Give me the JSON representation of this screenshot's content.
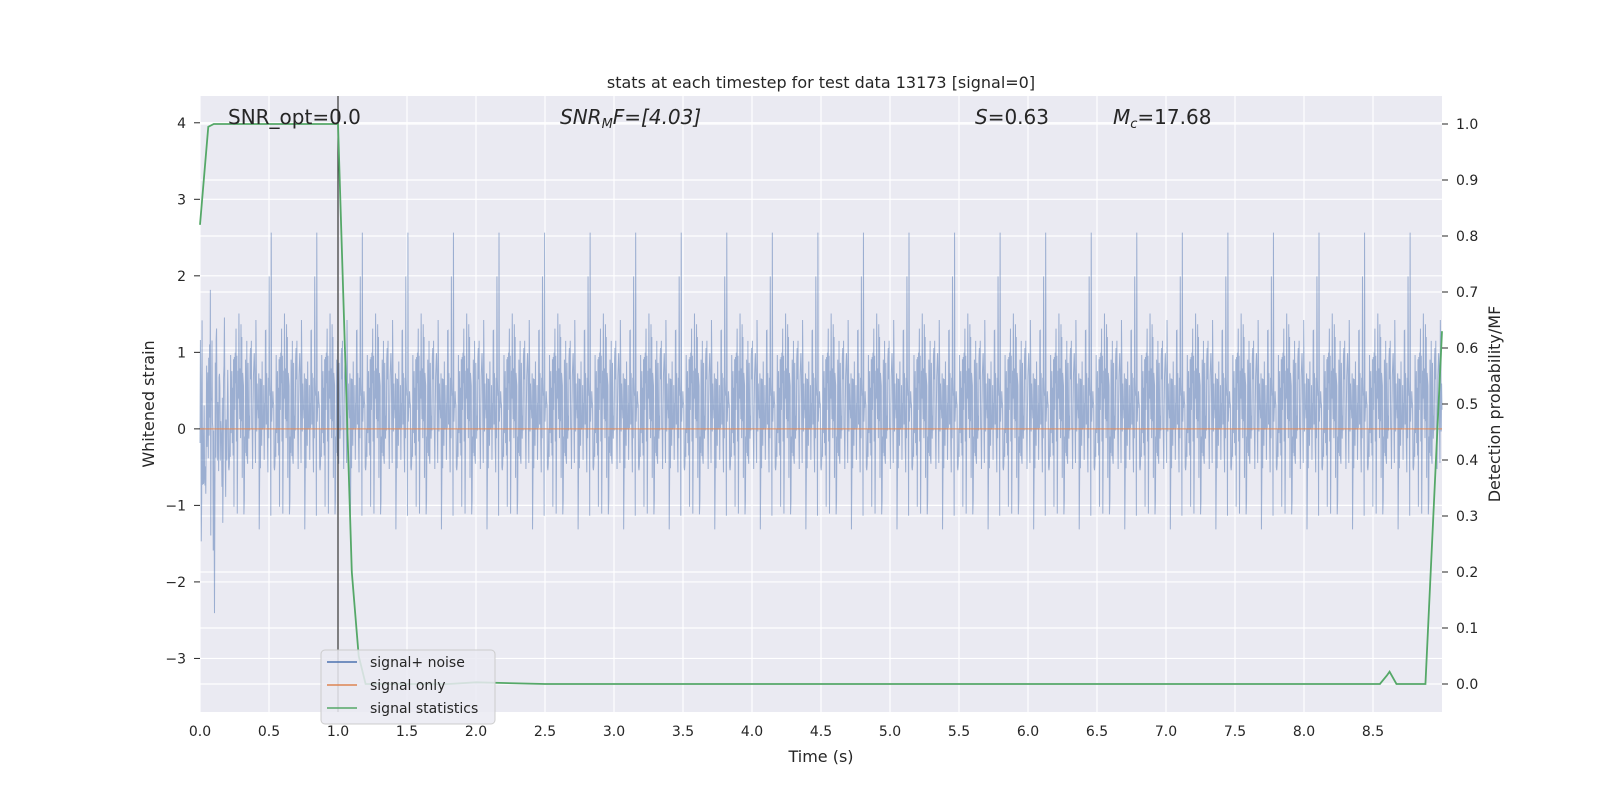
{
  "chart_data": {
    "type": "line",
    "title": "stats at each timestep for test data 13173 [signal=0]",
    "xlabel": "Time (s)",
    "ylabel_left": "Whitened strain",
    "ylabel_right": "Detection probability/MF",
    "xlim": [
      0.0,
      9.0
    ],
    "ylim_left": [
      -3.7,
      4.35
    ],
    "ylim_right": [
      -0.05,
      1.05
    ],
    "xticks": [
      "0.0",
      "0.5",
      "1.0",
      "1.5",
      "2.0",
      "2.5",
      "3.0",
      "3.5",
      "4.0",
      "4.5",
      "5.0",
      "5.5",
      "6.0",
      "6.5",
      "7.0",
      "7.5",
      "8.0",
      "8.5"
    ],
    "yticks_left": [
      "−3",
      "−2",
      "−1",
      "0",
      "1",
      "2",
      "3",
      "4"
    ],
    "yticks_right": [
      "0.0",
      "0.1",
      "0.2",
      "0.3",
      "0.4",
      "0.5",
      "0.6",
      "0.7",
      "0.8",
      "0.9",
      "1.0"
    ],
    "grid": true,
    "legend_position": "lower-left",
    "annotations": {
      "snr_opt": "SNR_opt=0.0",
      "snr_mf_a": "SNR",
      "snr_mf_sub": "M",
      "snr_mf_b": "F=[4.03]",
      "s_stat_a": "S",
      "s_stat_b": "=0.63",
      "mc_a": "M",
      "mc_sub": "c",
      "mc_b": "=17.68"
    },
    "vertical_marker_x": 1.0,
    "series": [
      {
        "name": "signal+ noise",
        "color": "#4c72b0",
        "axis": "left",
        "noise_envelope": [
          -3.4,
          4.0
        ],
        "description_values": "random whitened noise spanning the full time range"
      },
      {
        "name": "signal only",
        "color": "#dd8452",
        "axis": "left",
        "x": [
          0.0,
          9.0
        ],
        "y": [
          0.0,
          0.0
        ]
      },
      {
        "name": "signal statistics",
        "color": "#55a868",
        "axis": "right",
        "x": [
          0.0,
          0.06,
          0.1,
          0.2,
          0.5,
          0.8,
          0.95,
          1.0,
          1.05,
          1.1,
          1.15,
          1.2,
          1.5,
          1.8,
          2.0,
          2.5,
          3.0,
          4.0,
          5.0,
          6.0,
          7.0,
          8.0,
          8.55,
          8.6,
          8.62,
          8.67,
          8.72,
          8.88,
          9.0
        ],
        "y": [
          0.82,
          0.995,
          1.0,
          1.0,
          1.0,
          1.0,
          1.0,
          1.0,
          0.6,
          0.2,
          0.05,
          0.0,
          0.0,
          0.0,
          0.003,
          0.0,
          0.0,
          0.0,
          0.0,
          0.0,
          0.0,
          0.0,
          0.0,
          0.015,
          0.022,
          0.0,
          0.0,
          0.0,
          0.63
        ]
      }
    ]
  }
}
